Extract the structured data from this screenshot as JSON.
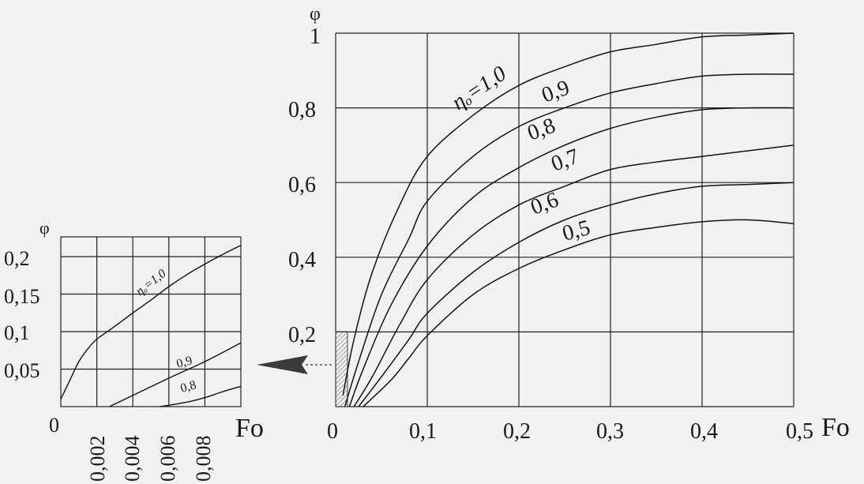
{
  "chart_data": [
    {
      "type": "line",
      "id": "main",
      "ylabel": "φ",
      "xlabel": "Fo",
      "xlim": [
        0,
        0.5
      ],
      "ylim": [
        0,
        1
      ],
      "grid": true,
      "x_ticks": [
        "0",
        "0,1",
        "0,2",
        "0,3",
        "0,4",
        "0,5"
      ],
      "y_ticks": [
        "0,2",
        "0,4",
        "0,6",
        "0,8",
        "1"
      ],
      "series": [
        {
          "name": "ηₒ=1,0",
          "points": [
            [
              0.008,
              0.03
            ],
            [
              0.02,
              0.18
            ],
            [
              0.04,
              0.36
            ],
            [
              0.07,
              0.54
            ],
            [
              0.1,
              0.67
            ],
            [
              0.15,
              0.78
            ],
            [
              0.2,
              0.86
            ],
            [
              0.25,
              0.91
            ],
            [
              0.3,
              0.95
            ],
            [
              0.35,
              0.97
            ],
            [
              0.4,
              0.99
            ],
            [
              0.45,
              0.995
            ],
            [
              0.5,
              1.0
            ]
          ]
        },
        {
          "name": "0,9",
          "points": [
            [
              0.01,
              0.0
            ],
            [
              0.025,
              0.12
            ],
            [
              0.05,
              0.3
            ],
            [
              0.08,
              0.45
            ],
            [
              0.1,
              0.55
            ],
            [
              0.15,
              0.67
            ],
            [
              0.2,
              0.75
            ],
            [
              0.25,
              0.8
            ],
            [
              0.3,
              0.84
            ],
            [
              0.35,
              0.865
            ],
            [
              0.4,
              0.885
            ],
            [
              0.45,
              0.89
            ],
            [
              0.5,
              0.89
            ]
          ]
        },
        {
          "name": "0,8",
          "points": [
            [
              0.015,
              0.0
            ],
            [
              0.03,
              0.1
            ],
            [
              0.06,
              0.27
            ],
            [
              0.1,
              0.43
            ],
            [
              0.15,
              0.56
            ],
            [
              0.2,
              0.64
            ],
            [
              0.25,
              0.7
            ],
            [
              0.3,
              0.745
            ],
            [
              0.35,
              0.775
            ],
            [
              0.4,
              0.795
            ],
            [
              0.45,
              0.8
            ],
            [
              0.5,
              0.8
            ]
          ]
        },
        {
          "name": "0,7",
          "points": [
            [
              0.02,
              0.0
            ],
            [
              0.04,
              0.08
            ],
            [
              0.07,
              0.22
            ],
            [
              0.1,
              0.34
            ],
            [
              0.15,
              0.46
            ],
            [
              0.2,
              0.54
            ],
            [
              0.25,
              0.59
            ],
            [
              0.3,
              0.635
            ],
            [
              0.35,
              0.655
            ],
            [
              0.4,
              0.67
            ],
            [
              0.45,
              0.685
            ],
            [
              0.5,
              0.7
            ]
          ]
        },
        {
          "name": "0,6",
          "points": [
            [
              0.025,
              0.0
            ],
            [
              0.05,
              0.08
            ],
            [
              0.08,
              0.18
            ],
            [
              0.1,
              0.25
            ],
            [
              0.15,
              0.36
            ],
            [
              0.2,
              0.44
            ],
            [
              0.25,
              0.5
            ],
            [
              0.3,
              0.54
            ],
            [
              0.35,
              0.57
            ],
            [
              0.4,
              0.59
            ],
            [
              0.45,
              0.595
            ],
            [
              0.5,
              0.6
            ]
          ]
        },
        {
          "name": "0,5",
          "points": [
            [
              0.03,
              0.0
            ],
            [
              0.06,
              0.07
            ],
            [
              0.08,
              0.13
            ],
            [
              0.1,
              0.19
            ],
            [
              0.15,
              0.3
            ],
            [
              0.2,
              0.37
            ],
            [
              0.25,
              0.42
            ],
            [
              0.3,
              0.46
            ],
            [
              0.35,
              0.48
            ],
            [
              0.4,
              0.495
            ],
            [
              0.45,
              0.5
            ],
            [
              0.5,
              0.49
            ]
          ]
        }
      ]
    },
    {
      "type": "line",
      "id": "inset",
      "ylabel": "φ",
      "xlabel": "Fo",
      "xlim": [
        0,
        0.01
      ],
      "ylim": [
        0,
        0.2
      ],
      "grid": true,
      "origin_tick": "0",
      "x_ticks": [
        "0,002",
        "0,004",
        "0,006",
        "0,008"
      ],
      "y_ticks": [
        "0,05",
        "0,1",
        "0,15",
        "0,2"
      ],
      "series": [
        {
          "name": "ηₒ=1,0",
          "points": [
            [
              0.0,
              0.01
            ],
            [
              0.0005,
              0.035
            ],
            [
              0.001,
              0.06
            ],
            [
              0.0015,
              0.077
            ],
            [
              0.002,
              0.09
            ],
            [
              0.003,
              0.107
            ],
            [
              0.004,
              0.125
            ],
            [
              0.005,
              0.142
            ],
            [
              0.006,
              0.16
            ],
            [
              0.007,
              0.176
            ],
            [
              0.008,
              0.19
            ],
            [
              0.009,
              0.203
            ],
            [
              0.01,
              0.215
            ]
          ]
        },
        {
          "name": "0,9",
          "points": [
            [
              0.0027,
              0.0
            ],
            [
              0.004,
              0.015
            ],
            [
              0.006,
              0.038
            ],
            [
              0.008,
              0.06
            ],
            [
              0.01,
              0.085
            ]
          ]
        },
        {
          "name": "0,8",
          "points": [
            [
              0.0055,
              0.0
            ],
            [
              0.007,
              0.006
            ],
            [
              0.008,
              0.012
            ],
            [
              0.009,
              0.02
            ],
            [
              0.01,
              0.027
            ]
          ]
        }
      ]
    }
  ]
}
